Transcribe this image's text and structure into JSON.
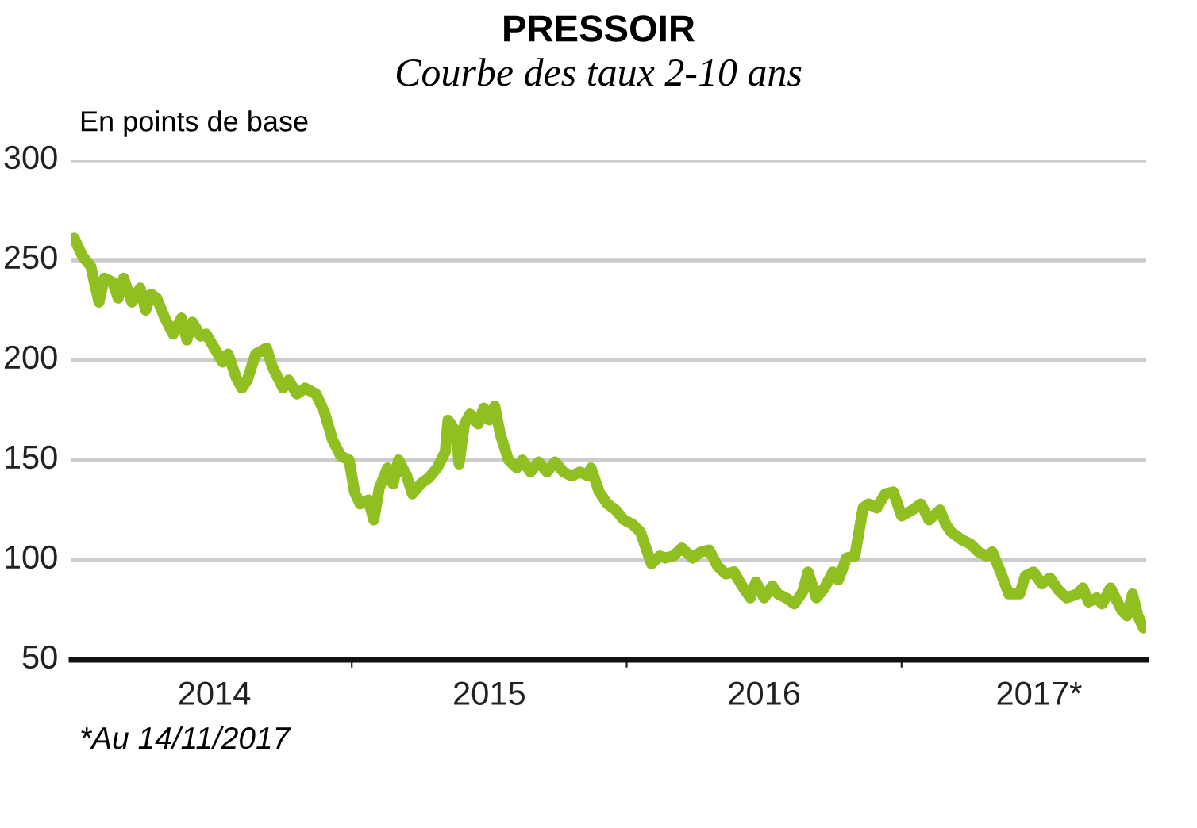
{
  "chart_data": {
    "type": "line",
    "title": "PRESSOIR",
    "subtitle": "Courbe des taux 2-10 ans",
    "ylabel": "En points de base",
    "annotations": [
      "*Au 14/11/2017"
    ],
    "x": [
      2013.99,
      2014.02,
      2014.05,
      2014.08,
      2014.1,
      2014.13,
      2014.15,
      2014.17,
      2014.2,
      2014.23,
      2014.25,
      2014.27,
      2014.29,
      2014.32,
      2014.35,
      2014.38,
      2014.4,
      2014.42,
      2014.45,
      2014.47,
      2014.5,
      2014.53,
      2014.55,
      2014.58,
      2014.6,
      2014.62,
      2014.65,
      2014.69,
      2014.71,
      2014.75,
      2014.77,
      2014.8,
      2014.83,
      2014.87,
      2014.9,
      2014.93,
      2014.96,
      2014.99,
      2015.01,
      2015.03,
      2015.06,
      2015.08,
      2015.1,
      2015.13,
      2015.15,
      2015.17,
      2015.2,
      2015.22,
      2015.25,
      2015.28,
      2015.31,
      2015.34,
      2015.35,
      2015.38,
      2015.39,
      2015.41,
      2015.43,
      2015.46,
      2015.48,
      2015.5,
      2015.52,
      2015.54,
      2015.57,
      2015.6,
      2015.62,
      2015.65,
      2015.68,
      2015.71,
      2015.74,
      2015.77,
      2015.8,
      2015.83,
      2015.86,
      2015.87,
      2015.9,
      2015.93,
      2015.96,
      2015.99,
      2016.02,
      2016.05,
      2016.09,
      2016.12,
      2016.14,
      2016.17,
      2016.2,
      2016.24,
      2016.27,
      2016.3,
      2016.33,
      2016.36,
      2016.39,
      2016.42,
      2016.45,
      2016.47,
      2016.5,
      2016.53,
      2016.55,
      2016.58,
      2016.61,
      2016.64,
      2016.66,
      2016.69,
      2016.72,
      2016.75,
      2016.77,
      2016.8,
      2016.83,
      2016.86,
      2016.88,
      2016.91,
      2016.94,
      2016.97,
      2017.0,
      2017.04,
      2017.07,
      2017.1,
      2017.14,
      2017.16,
      2017.18,
      2017.22,
      2017.25,
      2017.28,
      2017.31,
      2017.33,
      2017.36,
      2017.39,
      2017.43,
      2017.45,
      2017.48,
      2017.51,
      2017.54,
      2017.57,
      2017.6,
      2017.64,
      2017.66,
      2017.68,
      2017.71,
      2017.73,
      2017.76,
      2017.8,
      2017.82,
      2017.84,
      2017.86,
      2017.88
    ],
    "series": [
      {
        "color": "#8fbf21",
        "values": [
          261,
          252,
          247,
          229,
          241,
          239,
          231,
          241,
          229,
          236,
          225,
          233,
          231,
          221,
          213,
          221,
          210,
          219,
          212,
          213,
          206,
          199,
          203,
          191,
          186,
          190,
          203,
          206,
          197,
          186,
          190,
          183,
          186,
          183,
          174,
          160,
          152,
          150,
          134,
          128,
          130,
          120,
          136,
          146,
          138,
          150,
          142,
          133,
          138,
          141,
          146,
          154,
          170,
          164,
          148,
          168,
          173,
          168,
          176,
          170,
          177,
          163,
          150,
          146,
          150,
          144,
          149,
          144,
          149,
          144,
          142,
          144,
          142,
          146,
          134,
          128,
          125,
          120,
          118,
          114,
          98,
          102,
          101,
          102,
          106,
          101,
          104,
          105,
          97,
          93,
          94,
          87,
          81,
          89,
          81,
          87,
          83,
          81,
          78,
          84,
          94,
          81,
          86,
          94,
          90,
          101,
          102,
          126,
          128,
          126,
          133,
          134,
          122,
          125,
          128,
          120,
          125,
          118,
          114,
          110,
          108,
          104,
          102,
          104,
          94,
          83,
          83,
          92,
          94,
          88,
          91,
          85,
          81,
          83,
          86,
          79,
          81,
          78,
          86,
          75,
          72,
          83,
          72,
          66
        ]
      }
    ],
    "xlim": [
      2013.98,
      2017.89
    ],
    "xticks": [
      {
        "value": 2014.5,
        "label": "2014"
      },
      {
        "value": 2015.5,
        "label": "2015"
      },
      {
        "value": 2016.5,
        "label": "2016"
      },
      {
        "value": 2017.5,
        "label": "2017*"
      },
      {
        "value": 2015,
        "label": null
      },
      {
        "value": 2016,
        "label": null
      },
      {
        "value": 2017,
        "label": null
      }
    ],
    "ylim": [
      50,
      300
    ],
    "yticks": [
      50,
      100,
      150,
      200,
      250,
      300
    ],
    "grid": "y",
    "legend": false,
    "marker": "none",
    "line_style": "solid"
  }
}
